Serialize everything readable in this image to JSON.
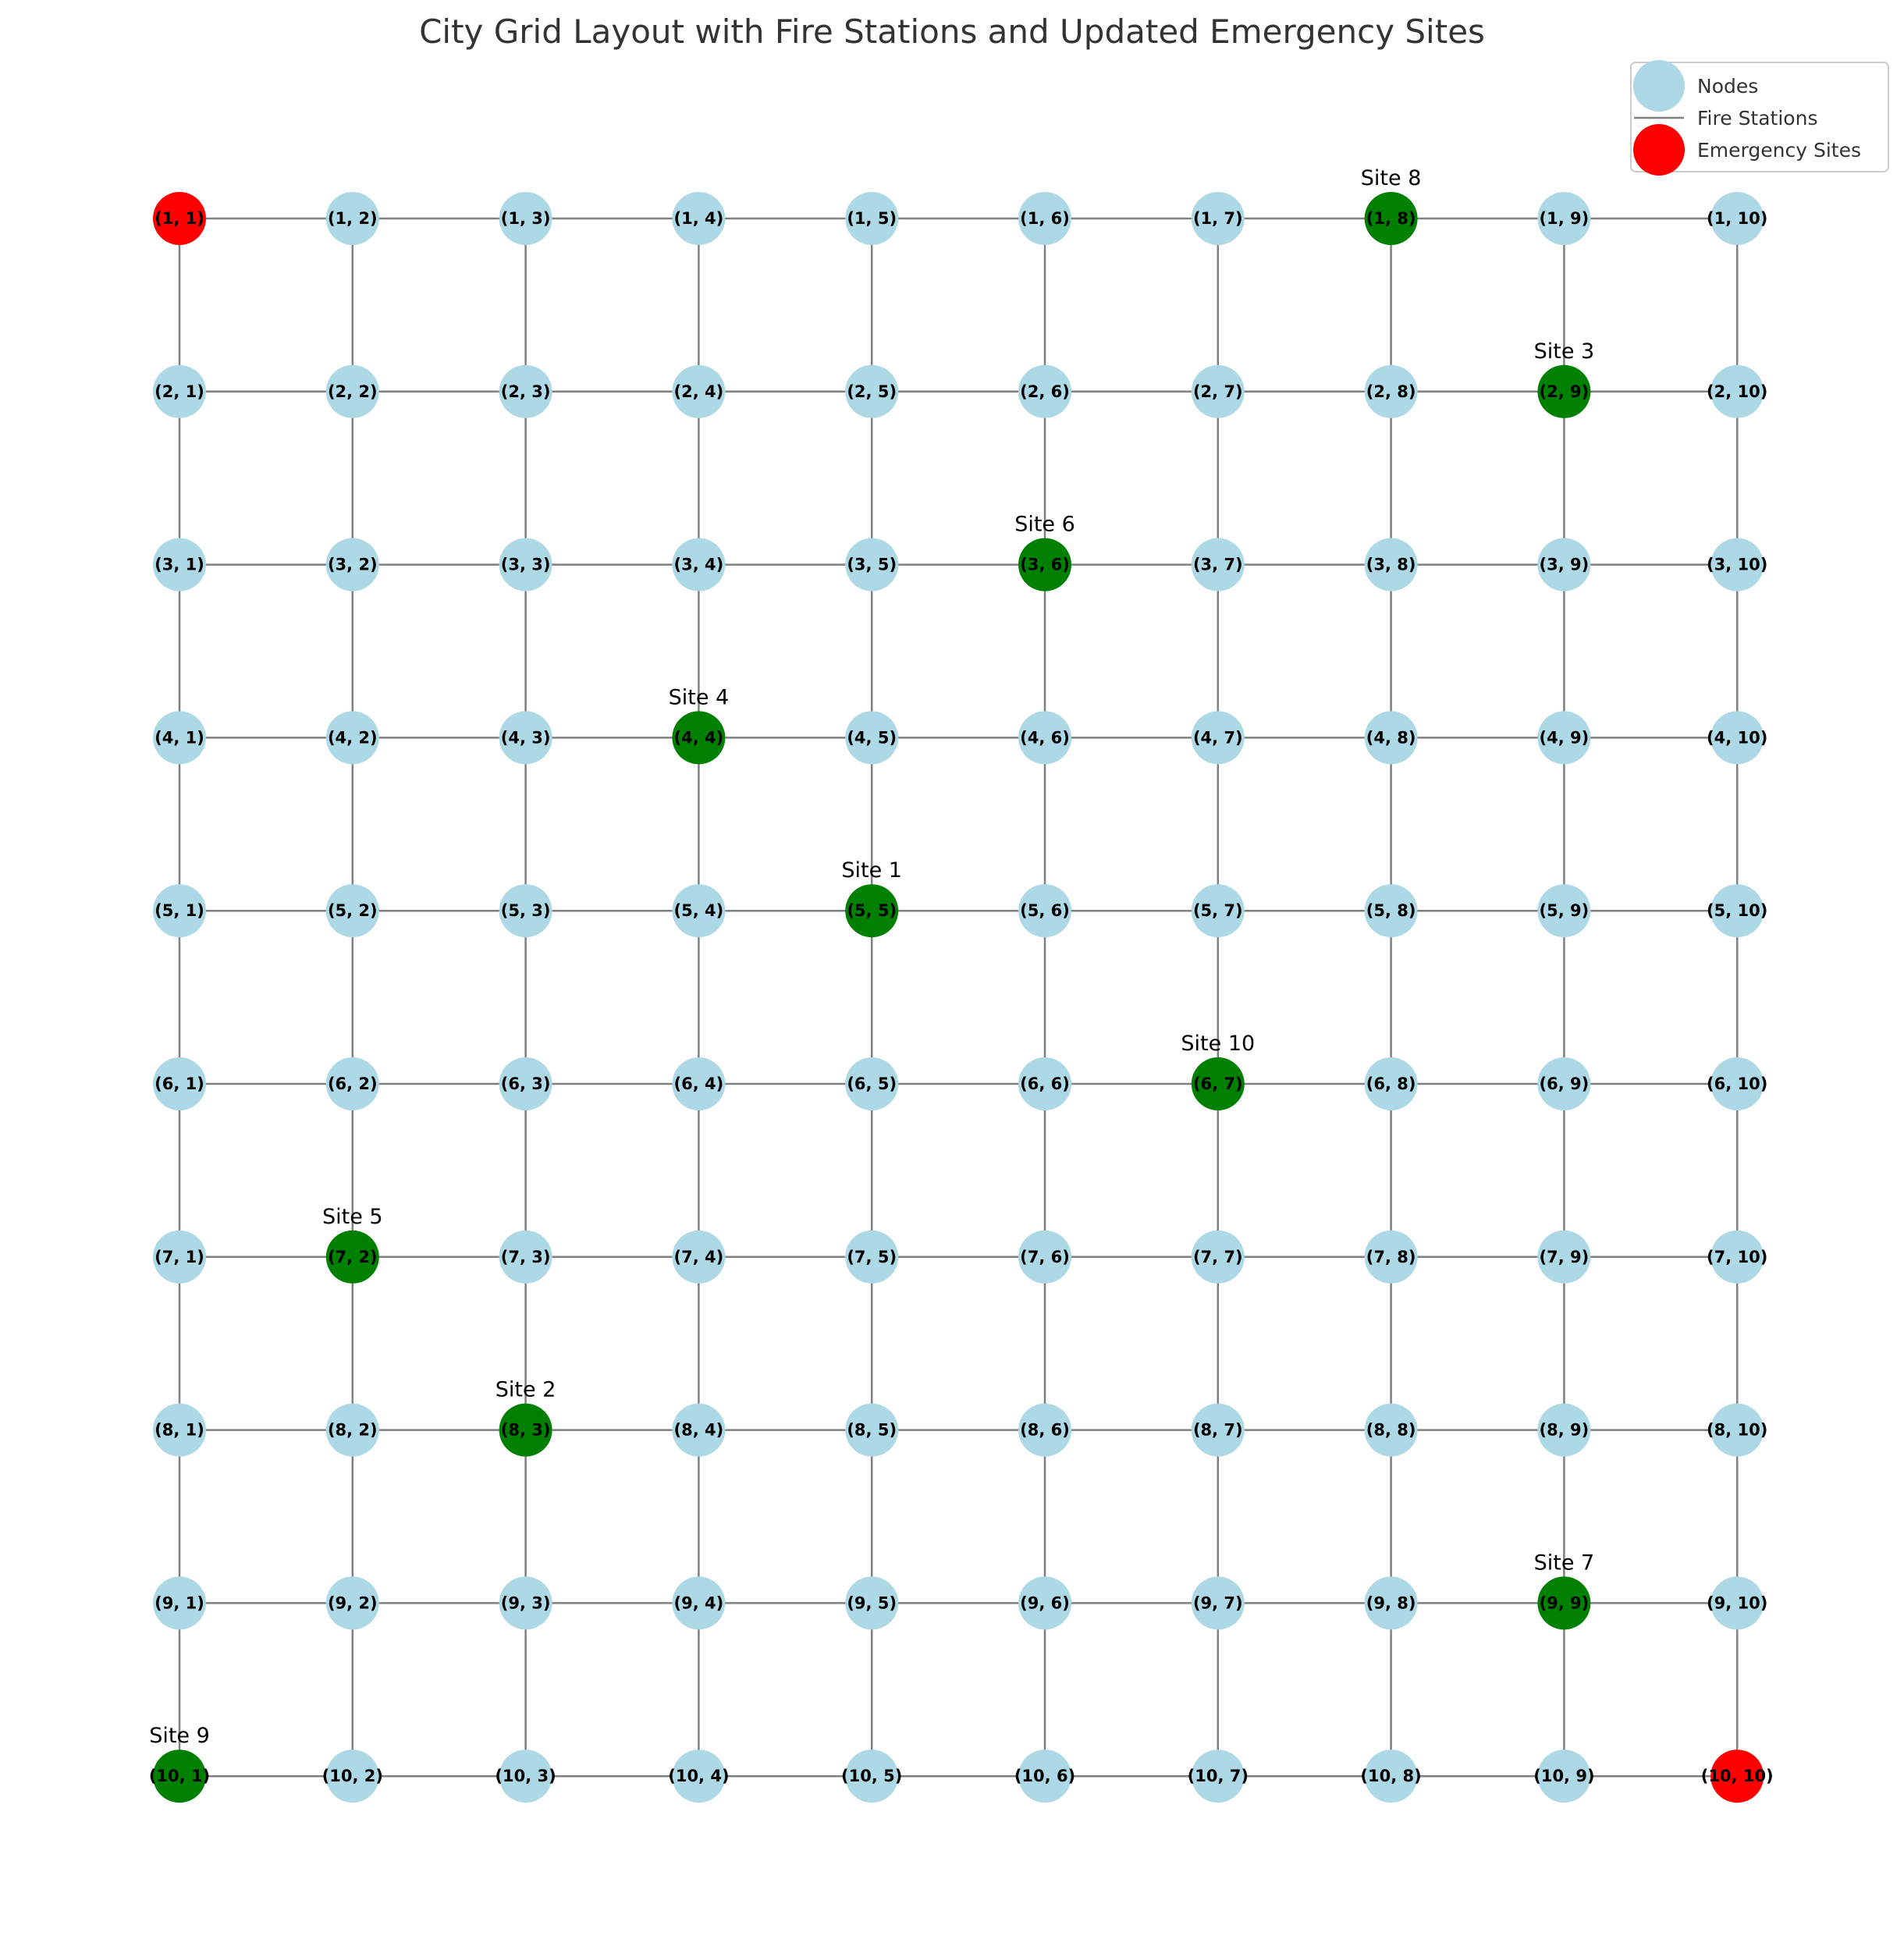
{
  "title": "City Grid Layout with Fire Stations and Updated Emergency Sites",
  "legend": {
    "placement": "top-right",
    "items": [
      {
        "label": "Nodes",
        "marker": "circle",
        "color": "#add8e6"
      },
      {
        "label": "Fire Stations",
        "marker": "line",
        "color": "#808080"
      },
      {
        "label": "Emergency Sites",
        "marker": "circle",
        "color": "#ff0000"
      }
    ]
  },
  "colors": {
    "node": "#add8e6",
    "station": "#008000",
    "emergency": "#ff0000",
    "edge": "#808080"
  },
  "grid": {
    "rows": 10,
    "cols": 10
  },
  "emergency_nodes": [
    [
      1,
      1
    ],
    [
      10,
      10
    ]
  ],
  "sites": [
    {
      "label": "Site 1",
      "row": 5,
      "col": 5
    },
    {
      "label": "Site 2",
      "row": 8,
      "col": 3
    },
    {
      "label": "Site 3",
      "row": 2,
      "col": 9
    },
    {
      "label": "Site 4",
      "row": 4,
      "col": 4
    },
    {
      "label": "Site 5",
      "row": 7,
      "col": 2
    },
    {
      "label": "Site 6",
      "row": 3,
      "col": 6
    },
    {
      "label": "Site 7",
      "row": 9,
      "col": 9
    },
    {
      "label": "Site 8",
      "row": 1,
      "col": 8
    },
    {
      "label": "Site 9",
      "row": 10,
      "col": 1
    },
    {
      "label": "Site 10",
      "row": 6,
      "col": 7
    }
  ]
}
